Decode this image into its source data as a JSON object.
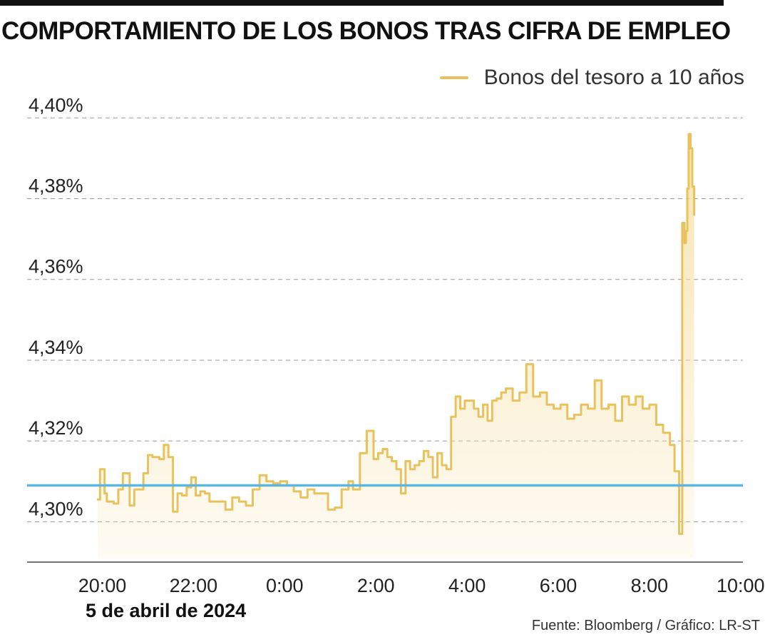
{
  "title": "COMPORTAMIENTO DE LOS BONOS TRAS CIFRA DE EMPLEO",
  "date_label": "5 de abril de 2024",
  "source": "Fuente: Bloomberg / Gráfico: LR-ST",
  "colors": {
    "series": "#e8c35d",
    "fill": "#f6dfa2",
    "reference": "#5bb6e0",
    "grid": "#9a9a9a",
    "axis": "#444444"
  },
  "chart_data": {
    "type": "area",
    "legend": "top-right",
    "grid": true,
    "y_tick_labels": [
      "4,30%",
      "4,32%",
      "4,34%",
      "4,36%",
      "4,38%",
      "4,40%"
    ],
    "y_ticks": [
      4.3,
      4.32,
      4.34,
      4.36,
      4.38,
      4.4
    ],
    "ylim": [
      4.29,
      4.408
    ],
    "x_tick_labels": [
      "20:00",
      "22:00",
      "0:00",
      "2:00",
      "4:00",
      "6:00",
      "8:00",
      "10:00"
    ],
    "x_ticks": [
      20,
      22,
      24,
      26,
      28,
      30,
      32,
      34
    ],
    "xlim": [
      18.35,
      34.05
    ],
    "reference_line": 4.309,
    "series": [
      {
        "name": "Bonos del tesoro a 10 años",
        "x": [
          19.9,
          19.95,
          20.05,
          20.1,
          20.25,
          20.35,
          20.45,
          20.6,
          20.7,
          20.8,
          20.9,
          21.0,
          21.1,
          21.25,
          21.35,
          21.45,
          21.55,
          21.65,
          21.75,
          21.85,
          21.95,
          22.05,
          22.15,
          22.25,
          22.35,
          22.45,
          22.55,
          22.7,
          22.85,
          23.0,
          23.15,
          23.3,
          23.45,
          23.6,
          23.75,
          23.9,
          24.05,
          24.2,
          24.35,
          24.5,
          24.65,
          24.8,
          24.95,
          25.1,
          25.25,
          25.4,
          25.5,
          25.65,
          25.8,
          25.95,
          26.05,
          26.15,
          26.25,
          26.35,
          26.45,
          26.55,
          26.65,
          26.75,
          26.85,
          26.95,
          27.05,
          27.15,
          27.25,
          27.35,
          27.45,
          27.55,
          27.65,
          27.75,
          27.85,
          27.95,
          28.05,
          28.15,
          28.25,
          28.35,
          28.45,
          28.55,
          28.65,
          28.75,
          28.85,
          29.0,
          29.15,
          29.3,
          29.45,
          29.6,
          29.75,
          29.9,
          30.05,
          30.2,
          30.35,
          30.5,
          30.65,
          30.8,
          30.95,
          31.1,
          31.25,
          31.4,
          31.55,
          31.7,
          31.85,
          32.0,
          32.15,
          32.3,
          32.45,
          32.55,
          32.65,
          32.72,
          32.77,
          32.8,
          32.83,
          32.86,
          32.9,
          32.94,
          32.98
        ],
        "values": [
          4.3055,
          4.313,
          4.307,
          4.305,
          4.3045,
          4.308,
          4.312,
          4.304,
          4.308,
          4.308,
          4.312,
          4.3165,
          4.316,
          4.3155,
          4.319,
          4.316,
          4.3025,
          4.307,
          4.3065,
          4.3085,
          4.311,
          4.3065,
          4.3075,
          4.307,
          4.305,
          4.305,
          4.305,
          4.303,
          4.306,
          4.305,
          4.304,
          4.308,
          4.3115,
          4.31,
          4.3095,
          4.31,
          4.309,
          4.3075,
          4.306,
          4.308,
          4.307,
          4.307,
          4.303,
          4.3035,
          4.308,
          4.31,
          4.308,
          4.317,
          4.3225,
          4.3155,
          4.317,
          4.318,
          4.316,
          4.315,
          4.313,
          4.307,
          4.315,
          4.313,
          4.314,
          4.315,
          4.3175,
          4.316,
          4.311,
          4.317,
          4.314,
          4.313,
          4.326,
          4.331,
          4.328,
          4.33,
          4.33,
          4.328,
          4.326,
          4.329,
          4.325,
          4.33,
          4.3305,
          4.332,
          4.333,
          4.33,
          4.332,
          4.339,
          4.331,
          4.332,
          4.329,
          4.328,
          4.329,
          4.3255,
          4.3265,
          4.329,
          4.328,
          4.335,
          4.328,
          4.329,
          4.325,
          4.331,
          4.329,
          4.331,
          4.328,
          4.329,
          4.324,
          4.322,
          4.319,
          4.3125,
          4.297,
          4.374,
          4.369,
          4.372,
          4.3825,
          4.396,
          4.3925,
          4.383,
          4.376
        ]
      }
    ]
  }
}
